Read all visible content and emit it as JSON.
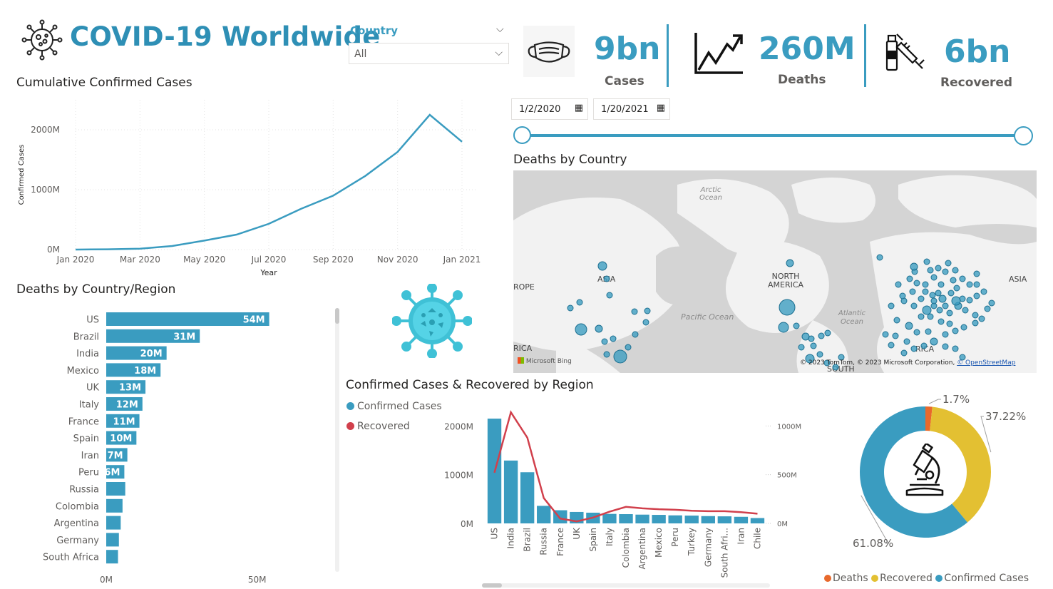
{
  "header": {
    "title": "COVID-19 Worldwide",
    "logo_icon": "virus-outline-icon"
  },
  "country_slicer": {
    "label": "Country",
    "value": "All"
  },
  "kpis": [
    {
      "icon": "face-mask-icon",
      "value": "9bn",
      "label": "Cases"
    },
    {
      "icon": "trend-up-chart-icon",
      "value": "260M",
      "label": "Deaths"
    },
    {
      "icon": "vaccine-syringe-icon",
      "value": "6bn",
      "label": "Recovered"
    }
  ],
  "date_slicer": {
    "start": "1/2/2020",
    "end": "1/20/2021",
    "range_start": 0,
    "range_end": 1
  },
  "map": {
    "title": "Deaths by Country",
    "labels": [
      "Arctic Ocean",
      "ASIA",
      "ROPE",
      "NORTH AMERICA",
      "Pacific Ocean",
      "Atlantic Ocean",
      "ASIA",
      "RICA",
      "SOUTH",
      "RICA"
    ],
    "bing_label": "Microsoft Bing",
    "attribution": "© 2023 TomTom, © 2023 Microsoft Corporation,",
    "osm_link": "© OpenStreetMap"
  },
  "chart_data": [
    {
      "id": "cumulative",
      "type": "line",
      "title": "Cumulative Confirmed Cases",
      "xlabel": "Year",
      "ylabel": "Confirmed Cases",
      "x": [
        "Jan 2020",
        "Feb 2020",
        "Mar 2020",
        "Apr 2020",
        "May 2020",
        "Jun 2020",
        "Jul 2020",
        "Aug 2020",
        "Sep 2020",
        "Oct 2020",
        "Nov 2020",
        "Dec 2020",
        "Jan 2021"
      ],
      "values": [
        0,
        5,
        15,
        60,
        150,
        250,
        430,
        680,
        900,
        1230,
        1630,
        2250,
        1800
      ],
      "x_ticks": [
        "Jan 2020",
        "Mar 2020",
        "May 2020",
        "Jul 2020",
        "Sep 2020",
        "Nov 2020",
        "Jan 2021"
      ],
      "y_ticks": [
        "0M",
        "1000M",
        "2000M"
      ],
      "ylim": [
        0,
        2500
      ],
      "grid": true,
      "color": "#3a9cc0"
    },
    {
      "id": "deaths_bar",
      "type": "bar",
      "orientation": "horizontal",
      "title": "Deaths by Country/Region",
      "categories": [
        "US",
        "Brazil",
        "India",
        "Mexico",
        "UK",
        "Italy",
        "France",
        "Spain",
        "Iran",
        "Peru",
        "Russia",
        "Colombia",
        "Argentina",
        "Germany",
        "South Africa"
      ],
      "values": [
        54,
        31,
        20,
        18,
        13,
        12,
        11,
        10,
        7,
        6,
        6.3,
        5.4,
        4.8,
        4.2,
        3.9
      ],
      "labels": [
        "54M",
        "31M",
        "20M",
        "18M",
        "13M",
        "12M",
        "11M",
        "10M",
        "7M",
        "6M",
        "",
        "",
        "",
        "",
        ""
      ],
      "x_ticks": [
        "0M",
        "50M"
      ],
      "xlim": [
        0,
        60
      ],
      "color": "#3a9cc0"
    },
    {
      "id": "region_combo",
      "type": "bar",
      "title": "Confirmed Cases & Recovered by Region",
      "categories": [
        "US",
        "India",
        "Brazil",
        "Russia",
        "France",
        "UK",
        "Spain",
        "Italy",
        "Colombia",
        "Argentina",
        "Mexico",
        "Peru",
        "Turkey",
        "Germany",
        "South Afri...",
        "Iran",
        "Chile"
      ],
      "series": [
        {
          "name": "Confirmed Cases",
          "axis": "left",
          "values": [
            2150,
            1290,
            1050,
            360,
            270,
            235,
            220,
            195,
            190,
            180,
            175,
            165,
            160,
            150,
            145,
            135,
            110
          ],
          "color": "#3a9cc0"
        },
        {
          "name": "Recovered",
          "axis": "right",
          "type": "line",
          "values": [
            520,
            1140,
            880,
            260,
            50,
            20,
            60,
            120,
            170,
            155,
            145,
            140,
            130,
            125,
            125,
            115,
            100
          ],
          "color": "#d1404c"
        }
      ],
      "y_ticks_left": [
        "0M",
        "1000M",
        "2000M"
      ],
      "ylim_left": [
        0,
        2400
      ],
      "y_ticks_right": [
        "0M",
        "500M",
        "1000M"
      ],
      "ylim_right": [
        0,
        1200
      ],
      "legend": [
        "Confirmed Cases",
        "Recovered"
      ]
    },
    {
      "id": "donut",
      "type": "pie",
      "slices": [
        {
          "name": "Deaths",
          "value": 1.7,
          "label": "1.7%",
          "color": "#e8692c"
        },
        {
          "name": "Recovered",
          "value": 37.22,
          "label": "37.22%",
          "color": "#e3c032"
        },
        {
          "name": "Confirmed Cases",
          "value": 61.08,
          "label": "61.08%",
          "color": "#3a9cc0"
        }
      ],
      "center_icon": "microscope-icon"
    }
  ]
}
